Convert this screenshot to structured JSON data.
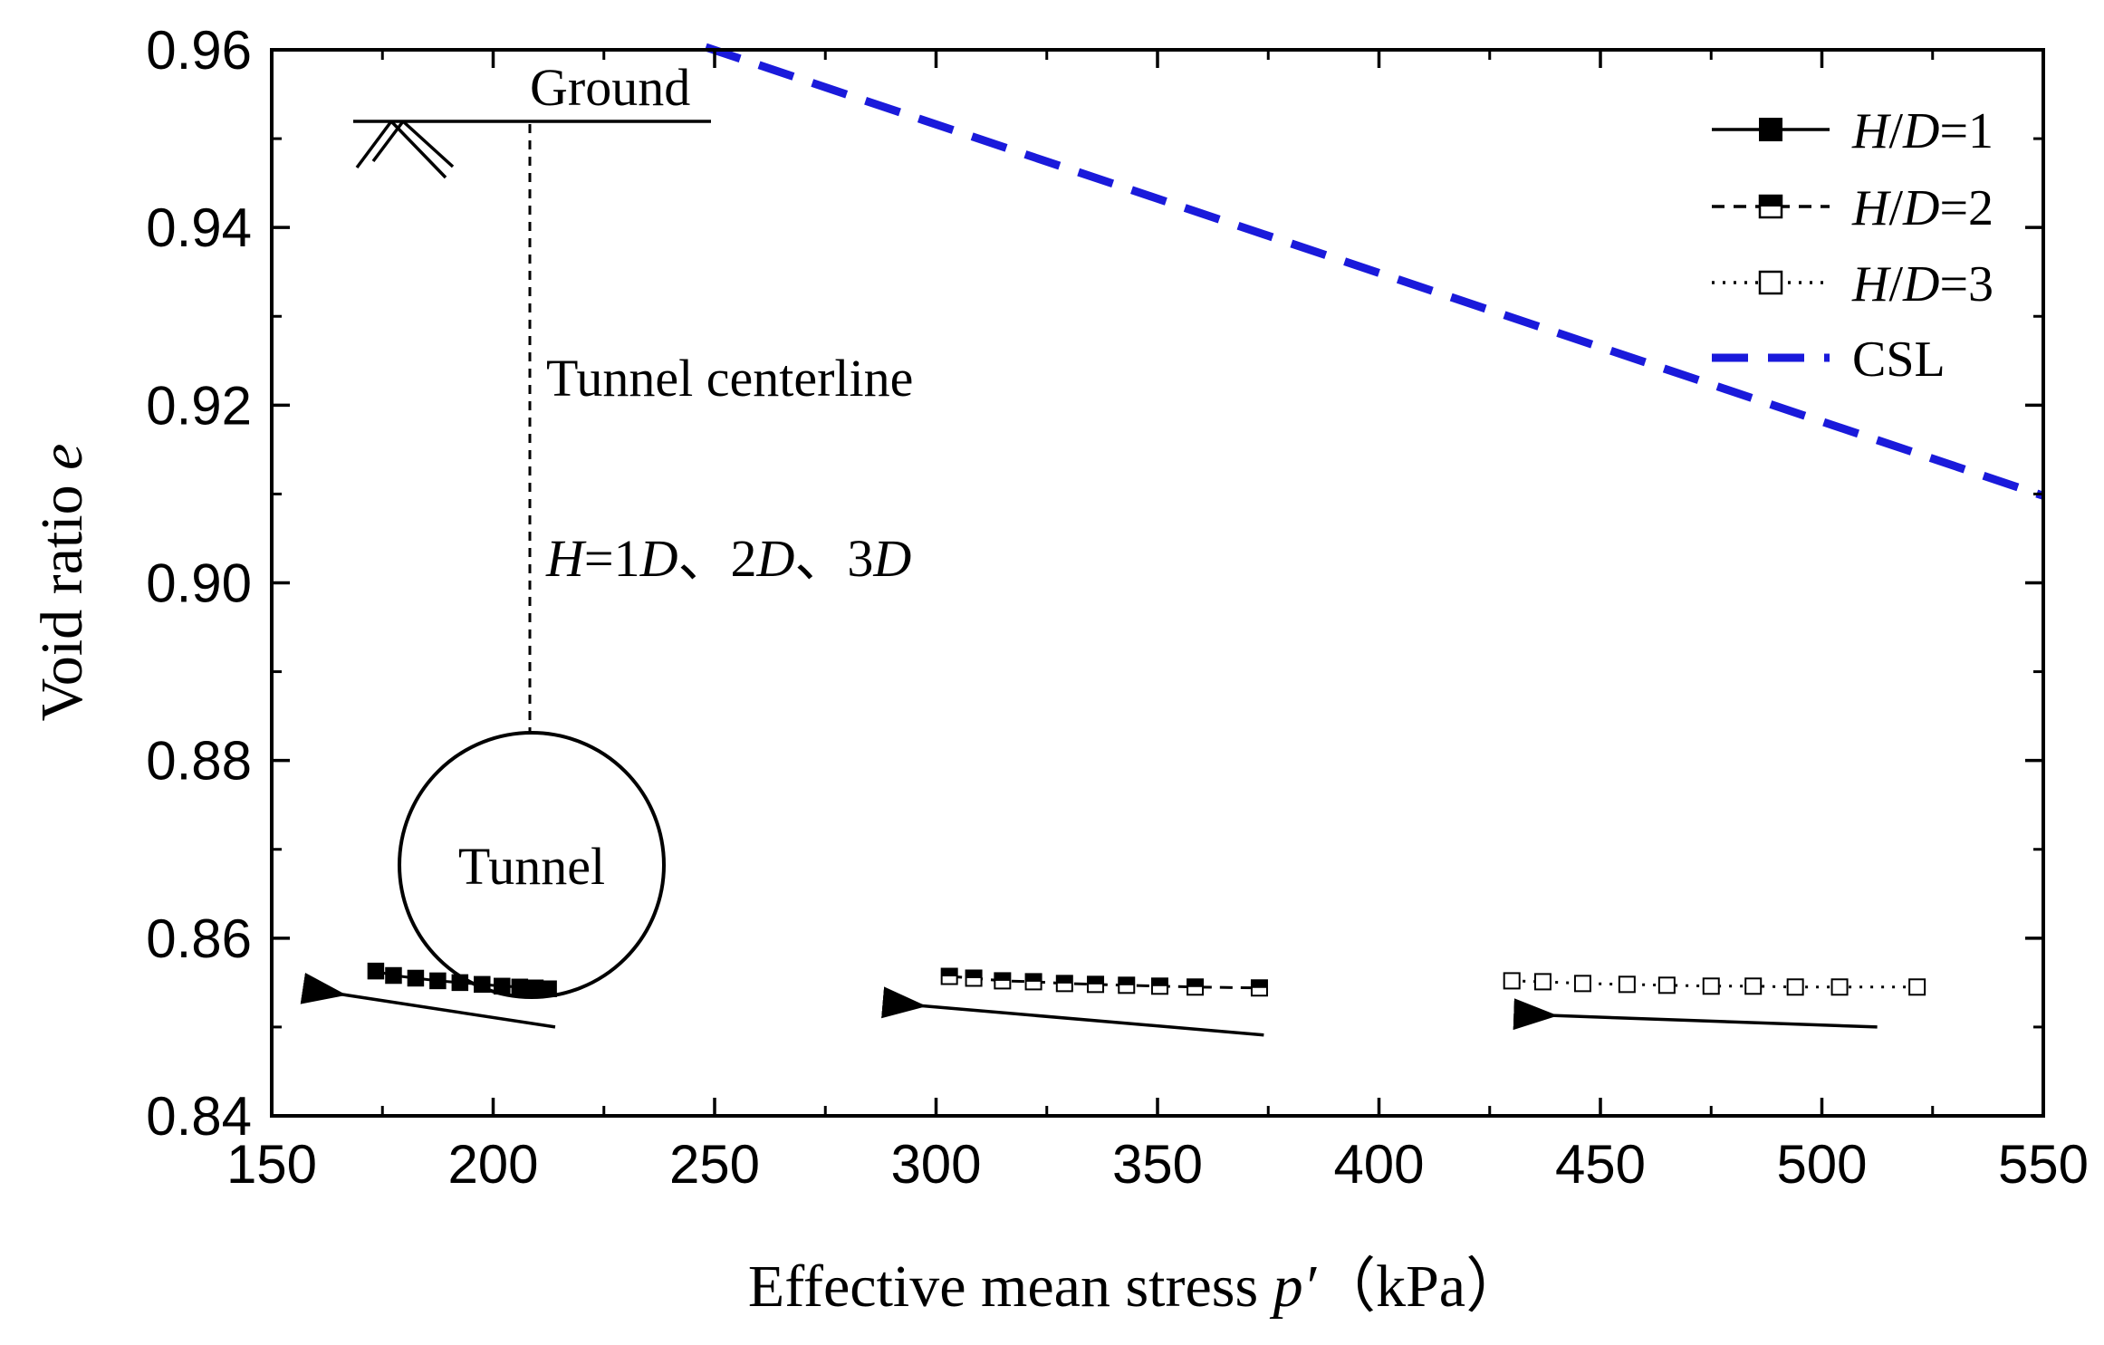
{
  "chart_data": {
    "type": "scatter",
    "title": "",
    "xlabel": "Effective mean stress",
    "xlabel_symbol": "p′",
    "xlabel_unit": "（kPa）",
    "ylabel": "Void ratio",
    "ylabel_symbol": "e",
    "xlim": [
      150,
      550
    ],
    "ylim": [
      0.84,
      0.96
    ],
    "xticks": [
      "150",
      "200",
      "250",
      "300",
      "350",
      "400",
      "450",
      "500",
      "550"
    ],
    "yticks": [
      "0.84",
      "0.86",
      "0.88",
      "0.90",
      "0.92",
      "0.94",
      "0.96"
    ],
    "grid": false,
    "legend_position": "top-right",
    "series": [
      {
        "name": "H/D=1",
        "label_parts": [
          "H",
          "/",
          "D",
          "=1"
        ],
        "color": "#000000",
        "line": "solid",
        "marker": "filled-square",
        "points": [
          [
            173.5,
            0.8563
          ],
          [
            177.5,
            0.8558
          ],
          [
            182.5,
            0.8555
          ],
          [
            187.5,
            0.8552
          ],
          [
            192.5,
            0.855
          ],
          [
            197.5,
            0.8548
          ],
          [
            202,
            0.8546
          ],
          [
            206,
            0.8545
          ],
          [
            209.5,
            0.8544
          ],
          [
            212.5,
            0.8543
          ]
        ]
      },
      {
        "name": "H/D=2",
        "label_parts": [
          "H",
          "/",
          "D",
          "=2"
        ],
        "color": "#000000",
        "line": "dashed",
        "marker": "half-filled-square",
        "points": [
          [
            303,
            0.8557
          ],
          [
            308.5,
            0.8555
          ],
          [
            315,
            0.8552
          ],
          [
            322,
            0.8551
          ],
          [
            329,
            0.8549
          ],
          [
            336,
            0.8548
          ],
          [
            343,
            0.8547
          ],
          [
            350.5,
            0.8546
          ],
          [
            358.5,
            0.8545
          ],
          [
            373,
            0.8544
          ]
        ]
      },
      {
        "name": "H/D=3",
        "label_parts": [
          "H",
          "/",
          "D",
          "=3"
        ],
        "color": "#000000",
        "line": "dotted",
        "marker": "open-square",
        "points": [
          [
            430,
            0.8552
          ],
          [
            437,
            0.8551
          ],
          [
            446,
            0.8549
          ],
          [
            456,
            0.8548
          ],
          [
            465,
            0.8547
          ],
          [
            475,
            0.8546
          ],
          [
            484.5,
            0.8546
          ],
          [
            494,
            0.8545
          ],
          [
            504,
            0.8545
          ],
          [
            521.5,
            0.8545
          ]
        ]
      },
      {
        "name": "CSL",
        "label_parts": [
          "CSL"
        ],
        "color": "#1a1adb",
        "line": "dashed-thick",
        "marker": "none",
        "points": [
          [
            248,
            0.9603
          ],
          [
            550,
            0.9098
          ]
        ]
      }
    ],
    "arrows": [
      {
        "from": [
          214,
          0.85
        ],
        "to": [
          165.5,
          0.8537
        ]
      },
      {
        "from": [
          374,
          0.8491
        ],
        "to": [
          296.5,
          0.8524
        ]
      },
      {
        "from": [
          512.5,
          0.85
        ],
        "to": [
          439,
          0.8513
        ]
      }
    ],
    "schematic": {
      "ground_label": "Ground",
      "centerline_label": "Tunnel centerline",
      "tunnel_label": "Tunnel",
      "depth_label_parts": [
        "H",
        "=1",
        "D",
        "、2",
        "D",
        "、3",
        "D"
      ]
    }
  }
}
